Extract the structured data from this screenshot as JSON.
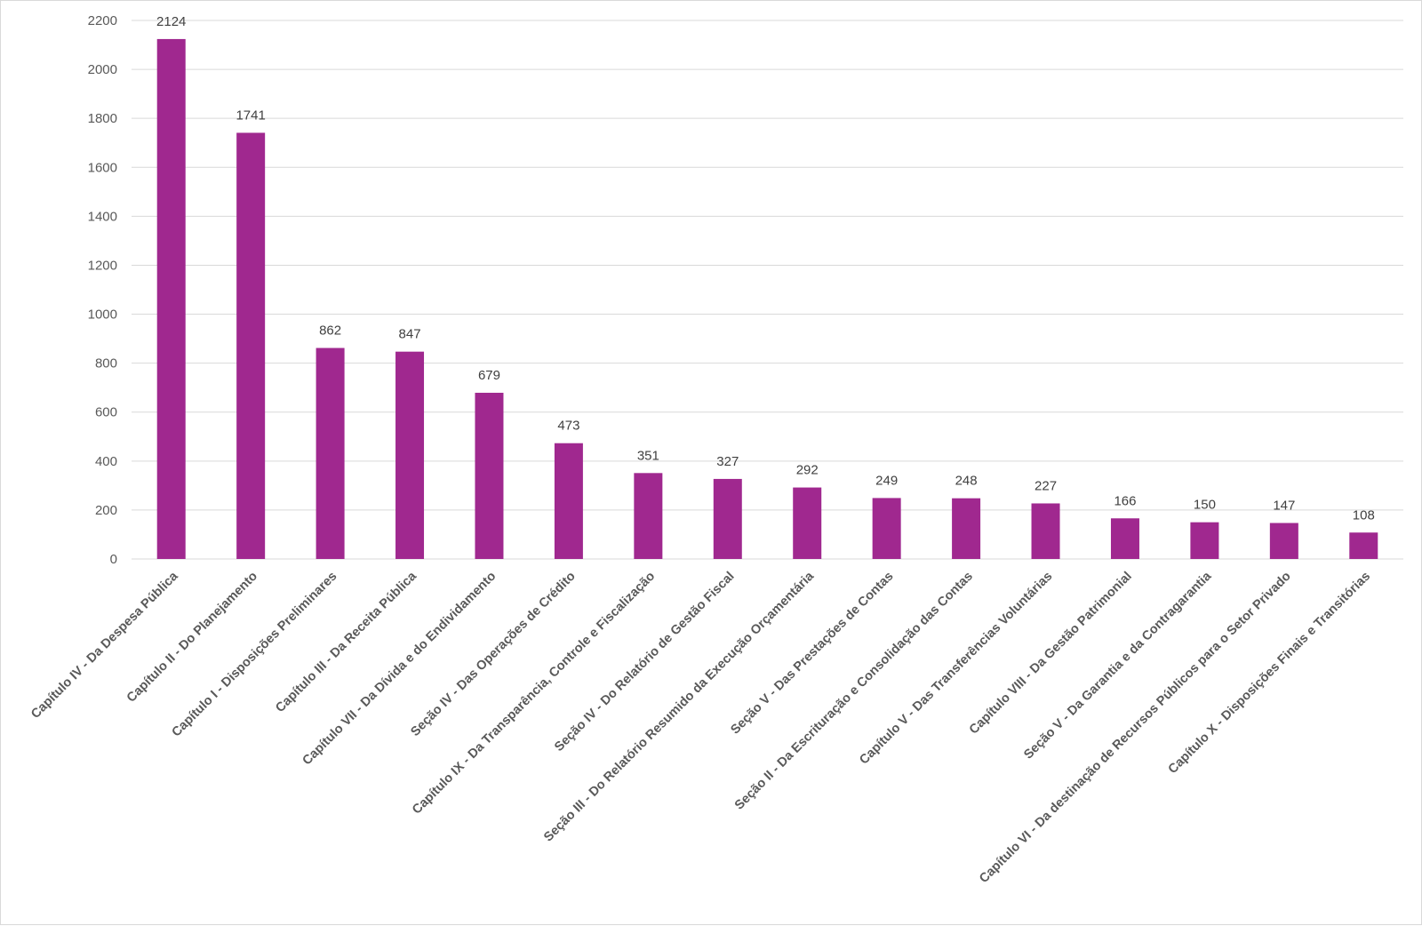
{
  "chart_data": {
    "type": "bar",
    "title": "",
    "xlabel": "",
    "ylabel": "",
    "ylim": [
      0,
      2200
    ],
    "yticks": [
      0,
      200,
      400,
      600,
      800,
      1000,
      1200,
      1400,
      1600,
      1800,
      2000,
      2200
    ],
    "grid": true,
    "legend": "none",
    "bar_color": "#A0288F",
    "categories": [
      "Capítulo IV - Da Despesa Pública",
      "Capítulo II - Do Planejamento",
      "Capítulo I - Disposições Preliminares",
      "Capítulo III - Da Receita Pública",
      "Capítulo VII - Da Dívida e do Endividamento",
      "Seção IV - Das Operações de Crédito",
      "Capítulo IX - Da Transparência, Controle e Fiscalização",
      "Seção IV - Do Relatório de Gestão Fiscal",
      "Seção III - Do Relatório Resumido da Execução Orçamentária",
      "Seção V - Das Prestações de Contas",
      "Seção II - Da Escrituração e Consolidação das Contas",
      "Capítulo V - Das Transferências Voluntárias",
      "Capítulo VIII - Da Gestão Patrimonial",
      "Seção V - Da Garantia e da Contragarantia",
      "Capítulo VI - Da destinação de Recursos Públicos para o Setor Privado",
      "Capítulo X - Disposições Finais e Transitórias"
    ],
    "values": [
      2124,
      1741,
      862,
      847,
      679,
      473,
      351,
      327,
      292,
      249,
      248,
      227,
      166,
      150,
      147,
      108
    ]
  }
}
